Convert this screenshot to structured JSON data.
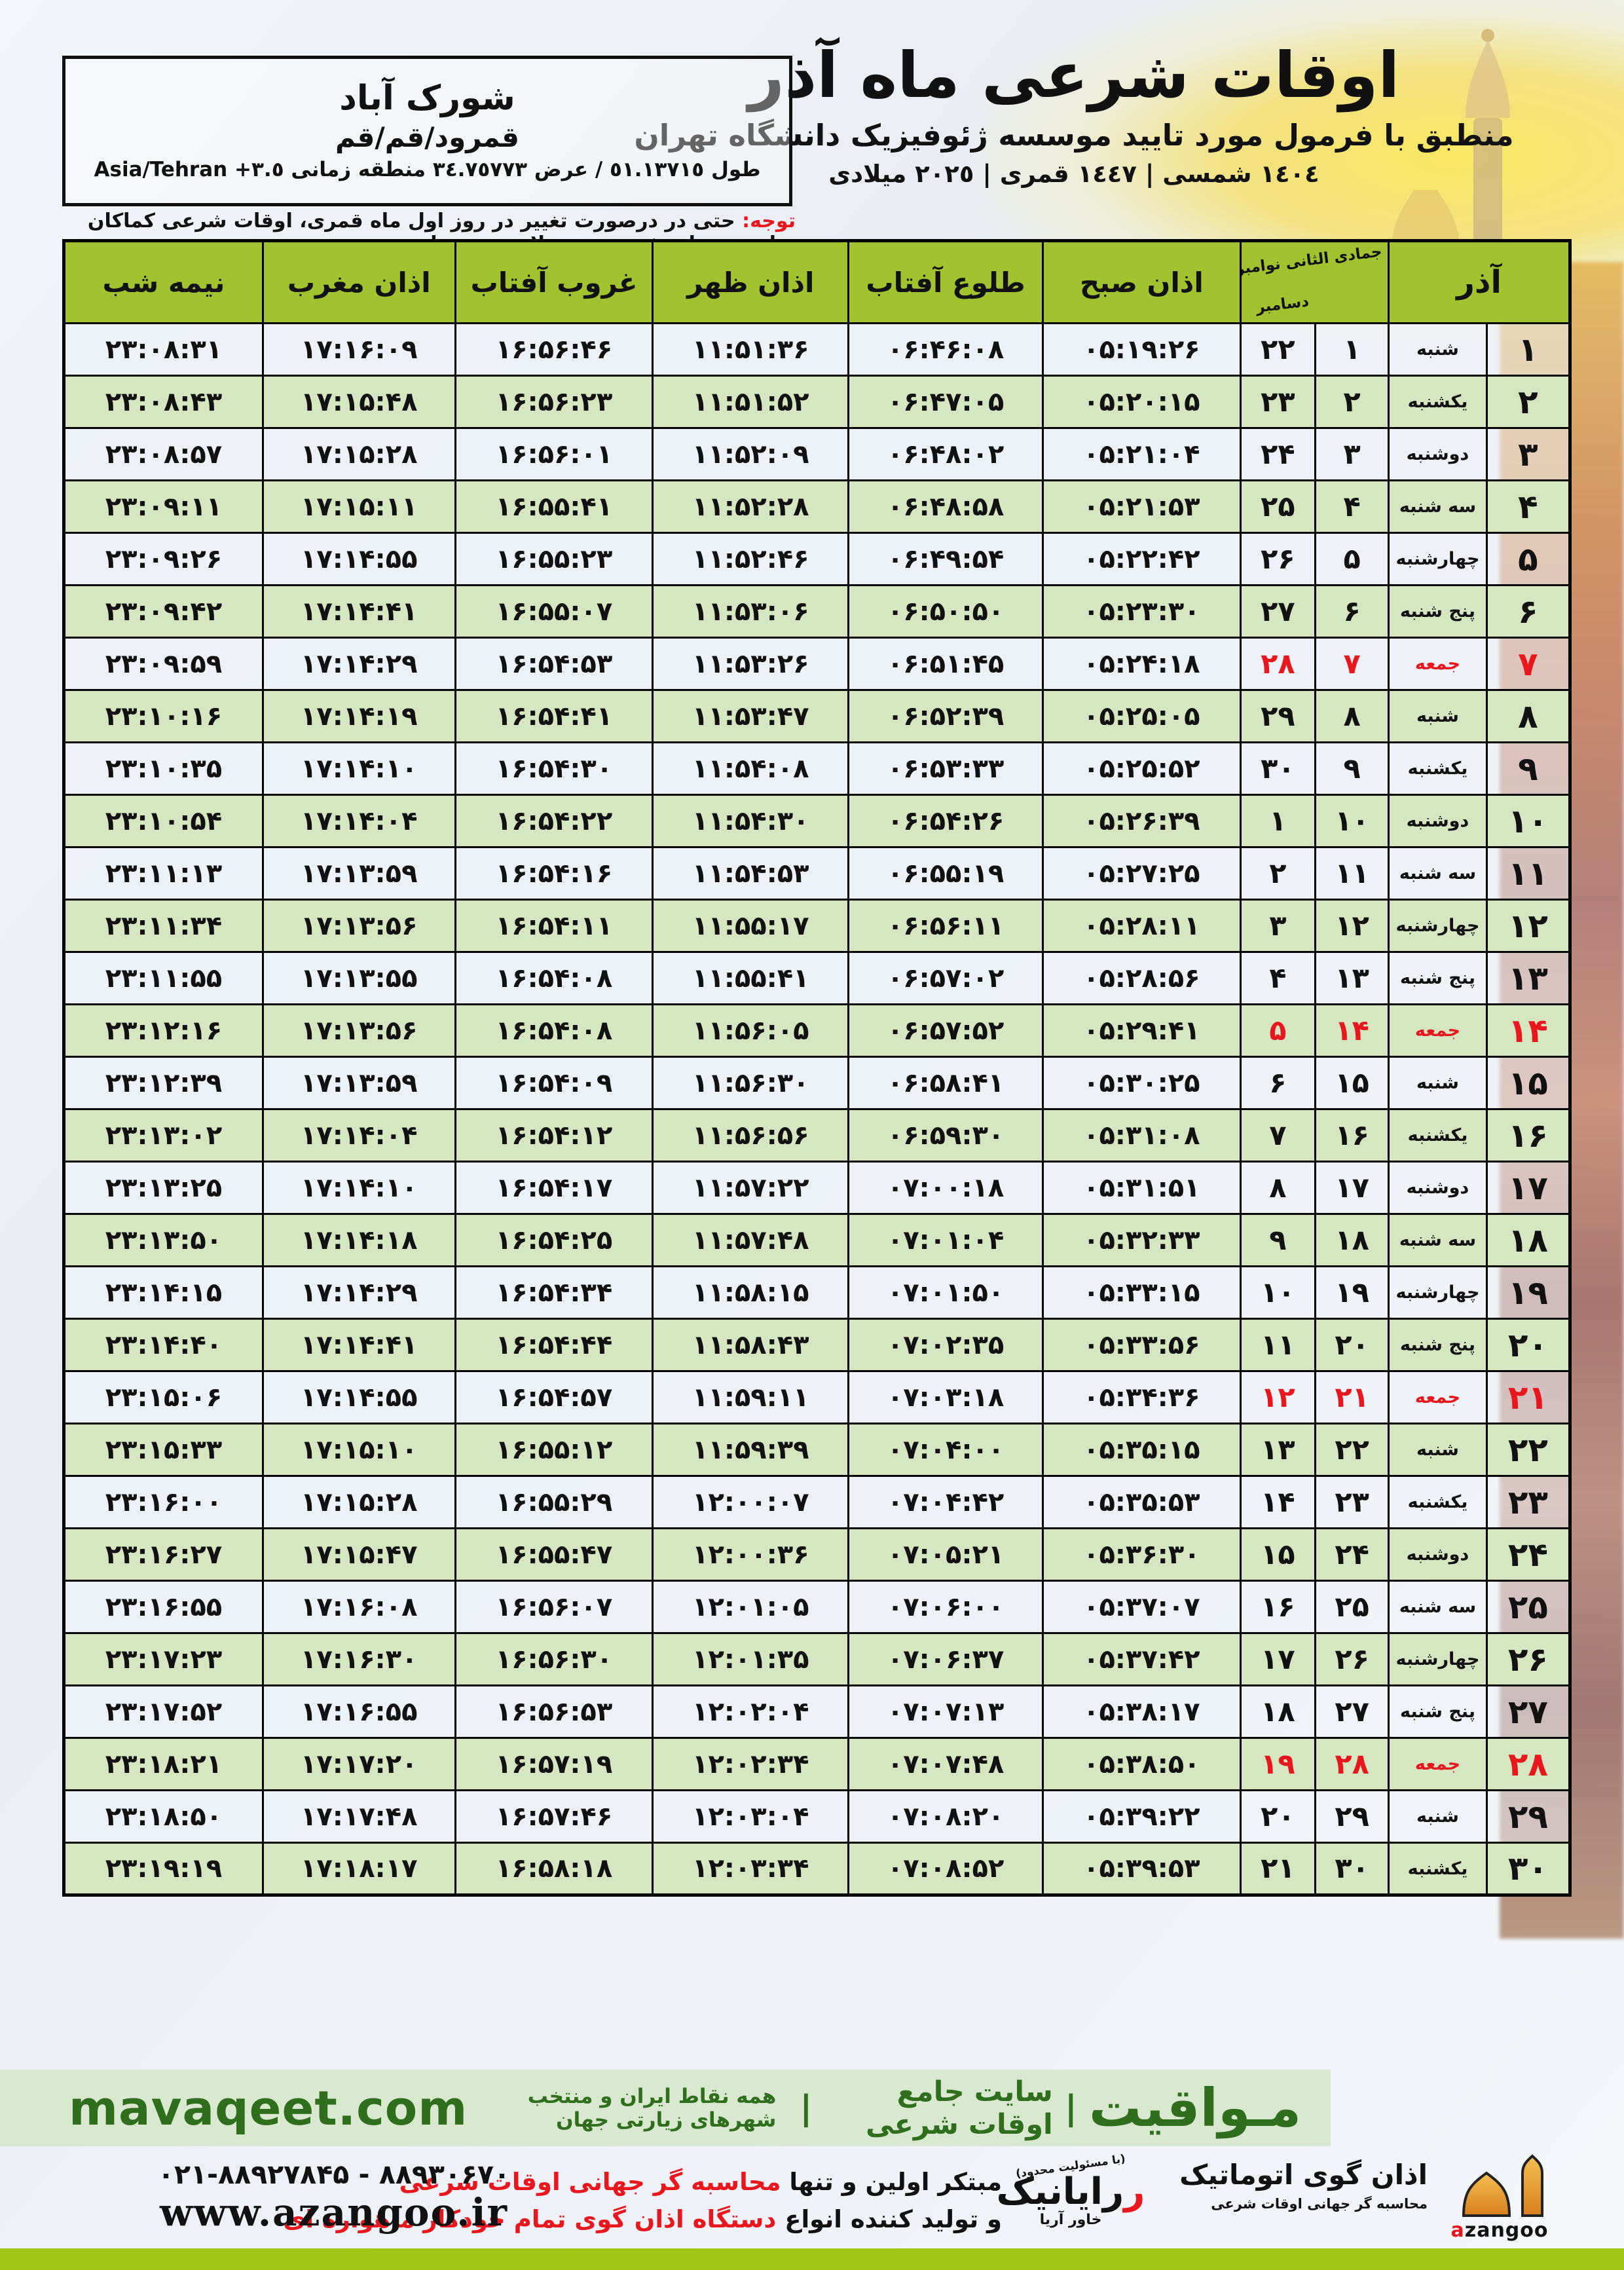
{
  "header": {
    "title": "اوقات شرعی ماه آذر",
    "subtitle": "منطبق با فرمول مورد تایید موسسه ژئوفیزیک دانشگاه تهران",
    "calendars": "١٤٠٤ شمسی | ١٤٤٧ قمری | ٢٠٢٥ میلادی",
    "location": {
      "name": "شورک آباد",
      "region": "قمرود/قم/قم",
      "coords": "طول ٥١.١٣٧١٥ / عرض ٣٤.٧٥٧٧٣ منطقه زمانی ٣.٥+ Asia/Tehran"
    },
    "notice_label": "توجه:",
    "notice_text": " حتی در درصورت تغییر در روز اول ماه قمری، اوقات شرعی کماکان برای روزهای شمسی و میلادی معتبر است."
  },
  "table": {
    "headers": {
      "azar": "آذر",
      "sub_top": "جمادی الثانی نوامبر",
      "sub_bottom": "دسامبر",
      "sobh": "اذان صبح",
      "tolu": "طلوع آفتاب",
      "zohr": "اذان ظهر",
      "ghorub": "غروب آفتاب",
      "maghreb": "اذان مغرب",
      "midnight": "نیمه شب"
    },
    "rows": [
      {
        "day": "۱",
        "weekday": "شنبه",
        "lunar": "۱",
        "greg": "۲۲",
        "sobh": "۰۵:۱۹:۲۶",
        "tolu": "۰۶:۴۶:۰۸",
        "zohr": "۱۱:۵۱:۳۶",
        "ghorub": "۱۶:۵۶:۴۶",
        "maghreb": "۱۷:۱۶:۰۹",
        "midnight": "۲۳:۰۸:۳۱",
        "friday": false
      },
      {
        "day": "۲",
        "weekday": "یکشنبه",
        "lunar": "۲",
        "greg": "۲۳",
        "sobh": "۰۵:۲۰:۱۵",
        "tolu": "۰۶:۴۷:۰۵",
        "zohr": "۱۱:۵۱:۵۲",
        "ghorub": "۱۶:۵۶:۲۳",
        "maghreb": "۱۷:۱۵:۴۸",
        "midnight": "۲۳:۰۸:۴۳",
        "friday": false
      },
      {
        "day": "۳",
        "weekday": "دوشنبه",
        "lunar": "۳",
        "greg": "۲۴",
        "sobh": "۰۵:۲۱:۰۴",
        "tolu": "۰۶:۴۸:۰۲",
        "zohr": "۱۱:۵۲:۰۹",
        "ghorub": "۱۶:۵۶:۰۱",
        "maghreb": "۱۷:۱۵:۲۸",
        "midnight": "۲۳:۰۸:۵۷",
        "friday": false
      },
      {
        "day": "۴",
        "weekday": "سه شنبه",
        "lunar": "۴",
        "greg": "۲۵",
        "sobh": "۰۵:۲۱:۵۳",
        "tolu": "۰۶:۴۸:۵۸",
        "zohr": "۱۱:۵۲:۲۸",
        "ghorub": "۱۶:۵۵:۴۱",
        "maghreb": "۱۷:۱۵:۱۱",
        "midnight": "۲۳:۰۹:۱۱",
        "friday": false
      },
      {
        "day": "۵",
        "weekday": "چهارشنبه",
        "lunar": "۵",
        "greg": "۲۶",
        "sobh": "۰۵:۲۲:۴۲",
        "tolu": "۰۶:۴۹:۵۴",
        "zohr": "۱۱:۵۲:۴۶",
        "ghorub": "۱۶:۵۵:۲۳",
        "maghreb": "۱۷:۱۴:۵۵",
        "midnight": "۲۳:۰۹:۲۶",
        "friday": false
      },
      {
        "day": "۶",
        "weekday": "پنج شنبه",
        "lunar": "۶",
        "greg": "۲۷",
        "sobh": "۰۵:۲۳:۳۰",
        "tolu": "۰۶:۵۰:۵۰",
        "zohr": "۱۱:۵۳:۰۶",
        "ghorub": "۱۶:۵۵:۰۷",
        "maghreb": "۱۷:۱۴:۴۱",
        "midnight": "۲۳:۰۹:۴۲",
        "friday": false
      },
      {
        "day": "۷",
        "weekday": "جمعه",
        "lunar": "۷",
        "greg": "۲۸",
        "sobh": "۰۵:۲۴:۱۸",
        "tolu": "۰۶:۵۱:۴۵",
        "zohr": "۱۱:۵۳:۲۶",
        "ghorub": "۱۶:۵۴:۵۳",
        "maghreb": "۱۷:۱۴:۲۹",
        "midnight": "۲۳:۰۹:۵۹",
        "friday": true
      },
      {
        "day": "۸",
        "weekday": "شنبه",
        "lunar": "۸",
        "greg": "۲۹",
        "sobh": "۰۵:۲۵:۰۵",
        "tolu": "۰۶:۵۲:۳۹",
        "zohr": "۱۱:۵۳:۴۷",
        "ghorub": "۱۶:۵۴:۴۱",
        "maghreb": "۱۷:۱۴:۱۹",
        "midnight": "۲۳:۱۰:۱۶",
        "friday": false
      },
      {
        "day": "۹",
        "weekday": "یکشنبه",
        "lunar": "۹",
        "greg": "۳۰",
        "sobh": "۰۵:۲۵:۵۲",
        "tolu": "۰۶:۵۳:۳۳",
        "zohr": "۱۱:۵۴:۰۸",
        "ghorub": "۱۶:۵۴:۳۰",
        "maghreb": "۱۷:۱۴:۱۰",
        "midnight": "۲۳:۱۰:۳۵",
        "friday": false
      },
      {
        "day": "۱۰",
        "weekday": "دوشنبه",
        "lunar": "۱۰",
        "greg": "۱",
        "sobh": "۰۵:۲۶:۳۹",
        "tolu": "۰۶:۵۴:۲۶",
        "zohr": "۱۱:۵۴:۳۰",
        "ghorub": "۱۶:۵۴:۲۲",
        "maghreb": "۱۷:۱۴:۰۴",
        "midnight": "۲۳:۱۰:۵۴",
        "friday": false
      },
      {
        "day": "۱۱",
        "weekday": "سه شنبه",
        "lunar": "۱۱",
        "greg": "۲",
        "sobh": "۰۵:۲۷:۲۵",
        "tolu": "۰۶:۵۵:۱۹",
        "zohr": "۱۱:۵۴:۵۳",
        "ghorub": "۱۶:۵۴:۱۶",
        "maghreb": "۱۷:۱۳:۵۹",
        "midnight": "۲۳:۱۱:۱۳",
        "friday": false
      },
      {
        "day": "۱۲",
        "weekday": "چهارشنبه",
        "lunar": "۱۲",
        "greg": "۳",
        "sobh": "۰۵:۲۸:۱۱",
        "tolu": "۰۶:۵۶:۱۱",
        "zohr": "۱۱:۵۵:۱۷",
        "ghorub": "۱۶:۵۴:۱۱",
        "maghreb": "۱۷:۱۳:۵۶",
        "midnight": "۲۳:۱۱:۳۴",
        "friday": false
      },
      {
        "day": "۱۳",
        "weekday": "پنج شنبه",
        "lunar": "۱۳",
        "greg": "۴",
        "sobh": "۰۵:۲۸:۵۶",
        "tolu": "۰۶:۵۷:۰۲",
        "zohr": "۱۱:۵۵:۴۱",
        "ghorub": "۱۶:۵۴:۰۸",
        "maghreb": "۱۷:۱۳:۵۵",
        "midnight": "۲۳:۱۱:۵۵",
        "friday": false
      },
      {
        "day": "۱۴",
        "weekday": "جمعه",
        "lunar": "۱۴",
        "greg": "۵",
        "sobh": "۰۵:۲۹:۴۱",
        "tolu": "۰۶:۵۷:۵۲",
        "zohr": "۱۱:۵۶:۰۵",
        "ghorub": "۱۶:۵۴:۰۸",
        "maghreb": "۱۷:۱۳:۵۶",
        "midnight": "۲۳:۱۲:۱۶",
        "friday": true
      },
      {
        "day": "۱۵",
        "weekday": "شنبه",
        "lunar": "۱۵",
        "greg": "۶",
        "sobh": "۰۵:۳۰:۲۵",
        "tolu": "۰۶:۵۸:۴۱",
        "zohr": "۱۱:۵۶:۳۰",
        "ghorub": "۱۶:۵۴:۰۹",
        "maghreb": "۱۷:۱۳:۵۹",
        "midnight": "۲۳:۱۲:۳۹",
        "friday": false
      },
      {
        "day": "۱۶",
        "weekday": "یکشنبه",
        "lunar": "۱۶",
        "greg": "۷",
        "sobh": "۰۵:۳۱:۰۸",
        "tolu": "۰۶:۵۹:۳۰",
        "zohr": "۱۱:۵۶:۵۶",
        "ghorub": "۱۶:۵۴:۱۲",
        "maghreb": "۱۷:۱۴:۰۴",
        "midnight": "۲۳:۱۳:۰۲",
        "friday": false
      },
      {
        "day": "۱۷",
        "weekday": "دوشنبه",
        "lunar": "۱۷",
        "greg": "۸",
        "sobh": "۰۵:۳۱:۵۱",
        "tolu": "۰۷:۰۰:۱۸",
        "zohr": "۱۱:۵۷:۲۲",
        "ghorub": "۱۶:۵۴:۱۷",
        "maghreb": "۱۷:۱۴:۱۰",
        "midnight": "۲۳:۱۳:۲۵",
        "friday": false
      },
      {
        "day": "۱۸",
        "weekday": "سه شنبه",
        "lunar": "۱۸",
        "greg": "۹",
        "sobh": "۰۵:۳۲:۳۳",
        "tolu": "۰۷:۰۱:۰۴",
        "zohr": "۱۱:۵۷:۴۸",
        "ghorub": "۱۶:۵۴:۲۵",
        "maghreb": "۱۷:۱۴:۱۸",
        "midnight": "۲۳:۱۳:۵۰",
        "friday": false
      },
      {
        "day": "۱۹",
        "weekday": "چهارشنبه",
        "lunar": "۱۹",
        "greg": "۱۰",
        "sobh": "۰۵:۳۳:۱۵",
        "tolu": "۰۷:۰۱:۵۰",
        "zohr": "۱۱:۵۸:۱۵",
        "ghorub": "۱۶:۵۴:۳۴",
        "maghreb": "۱۷:۱۴:۲۹",
        "midnight": "۲۳:۱۴:۱۵",
        "friday": false
      },
      {
        "day": "۲۰",
        "weekday": "پنج شنبه",
        "lunar": "۲۰",
        "greg": "۱۱",
        "sobh": "۰۵:۳۳:۵۶",
        "tolu": "۰۷:۰۲:۳۵",
        "zohr": "۱۱:۵۸:۴۳",
        "ghorub": "۱۶:۵۴:۴۴",
        "maghreb": "۱۷:۱۴:۴۱",
        "midnight": "۲۳:۱۴:۴۰",
        "friday": false
      },
      {
        "day": "۲۱",
        "weekday": "جمعه",
        "lunar": "۲۱",
        "greg": "۱۲",
        "sobh": "۰۵:۳۴:۳۶",
        "tolu": "۰۷:۰۳:۱۸",
        "zohr": "۱۱:۵۹:۱۱",
        "ghorub": "۱۶:۵۴:۵۷",
        "maghreb": "۱۷:۱۴:۵۵",
        "midnight": "۲۳:۱۵:۰۶",
        "friday": true
      },
      {
        "day": "۲۲",
        "weekday": "شنبه",
        "lunar": "۲۲",
        "greg": "۱۳",
        "sobh": "۰۵:۳۵:۱۵",
        "tolu": "۰۷:۰۴:۰۰",
        "zohr": "۱۱:۵۹:۳۹",
        "ghorub": "۱۶:۵۵:۱۲",
        "maghreb": "۱۷:۱۵:۱۰",
        "midnight": "۲۳:۱۵:۳۳",
        "friday": false
      },
      {
        "day": "۲۳",
        "weekday": "یکشنبه",
        "lunar": "۲۳",
        "greg": "۱۴",
        "sobh": "۰۵:۳۵:۵۳",
        "tolu": "۰۷:۰۴:۴۲",
        "zohr": "۱۲:۰۰:۰۷",
        "ghorub": "۱۶:۵۵:۲۹",
        "maghreb": "۱۷:۱۵:۲۸",
        "midnight": "۲۳:۱۶:۰۰",
        "friday": false
      },
      {
        "day": "۲۴",
        "weekday": "دوشنبه",
        "lunar": "۲۴",
        "greg": "۱۵",
        "sobh": "۰۵:۳۶:۳۰",
        "tolu": "۰۷:۰۵:۲۱",
        "zohr": "۱۲:۰۰:۳۶",
        "ghorub": "۱۶:۵۵:۴۷",
        "maghreb": "۱۷:۱۵:۴۷",
        "midnight": "۲۳:۱۶:۲۷",
        "friday": false
      },
      {
        "day": "۲۵",
        "weekday": "سه شنبه",
        "lunar": "۲۵",
        "greg": "۱۶",
        "sobh": "۰۵:۳۷:۰۷",
        "tolu": "۰۷:۰۶:۰۰",
        "zohr": "۱۲:۰۱:۰۵",
        "ghorub": "۱۶:۵۶:۰۷",
        "maghreb": "۱۷:۱۶:۰۸",
        "midnight": "۲۳:۱۶:۵۵",
        "friday": false
      },
      {
        "day": "۲۶",
        "weekday": "چهارشنبه",
        "lunar": "۲۶",
        "greg": "۱۷",
        "sobh": "۰۵:۳۷:۴۲",
        "tolu": "۰۷:۰۶:۳۷",
        "zohr": "۱۲:۰۱:۳۵",
        "ghorub": "۱۶:۵۶:۳۰",
        "maghreb": "۱۷:۱۶:۳۰",
        "midnight": "۲۳:۱۷:۲۳",
        "friday": false
      },
      {
        "day": "۲۷",
        "weekday": "پنج شنبه",
        "lunar": "۲۷",
        "greg": "۱۸",
        "sobh": "۰۵:۳۸:۱۷",
        "tolu": "۰۷:۰۷:۱۳",
        "zohr": "۱۲:۰۲:۰۴",
        "ghorub": "۱۶:۵۶:۵۳",
        "maghreb": "۱۷:۱۶:۵۵",
        "midnight": "۲۳:۱۷:۵۲",
        "friday": false
      },
      {
        "day": "۲۸",
        "weekday": "جمعه",
        "lunar": "۲۸",
        "greg": "۱۹",
        "sobh": "۰۵:۳۸:۵۰",
        "tolu": "۰۷:۰۷:۴۸",
        "zohr": "۱۲:۰۲:۳۴",
        "ghorub": "۱۶:۵۷:۱۹",
        "maghreb": "۱۷:۱۷:۲۰",
        "midnight": "۲۳:۱۸:۲۱",
        "friday": true
      },
      {
        "day": "۲۹",
        "weekday": "شنبه",
        "lunar": "۲۹",
        "greg": "۲۰",
        "sobh": "۰۵:۳۹:۲۲",
        "tolu": "۰۷:۰۸:۲۰",
        "zohr": "۱۲:۰۳:۰۴",
        "ghorub": "۱۶:۵۷:۴۶",
        "maghreb": "۱۷:۱۷:۴۸",
        "midnight": "۲۳:۱۸:۵۰",
        "friday": false
      },
      {
        "day": "۳۰",
        "weekday": "یکشنبه",
        "lunar": "۳۰",
        "greg": "۲۱",
        "sobh": "۰۵:۳۹:۵۳",
        "tolu": "۰۷:۰۸:۵۲",
        "zohr": "۱۲:۰۳:۳۴",
        "ghorub": "۱۶:۵۸:۱۸",
        "maghreb": "۱۷:۱۸:۱۷",
        "midnight": "۲۳:۱۹:۱۹",
        "friday": false
      }
    ]
  },
  "mavaqeet": {
    "brand": "مـواقیت",
    "sep": "|",
    "tag1": "سایت جامع اوقات شرعی",
    "tag2": "همه نقاط ایران و منتخب شهرهای زیارتی جهان",
    "url": "mavaqeet.com"
  },
  "footer": {
    "line1_black": "مبتکر اولین و تنها ",
    "line1_red": "محاسبه گر جهانی اوقات شرعی",
    "line2_black": "و تولید کننده انواع ",
    "line2_red": "دستگاه اذان گوی تمام خودکار ماهواره ای",
    "phone": "۰۲۱-۸۸۹۲۷۸۴۵ - ۸۸۹۳۰۶۷۰",
    "site": "www.azangoo.ir",
    "rayanik_note": "(با مسئولیت محدود)",
    "rayanik_name": "رایانیک",
    "rayanik_sub": "خاور آریا",
    "azangoo_fa": "اذان گوی اتوماتیک",
    "azangoo_sub": "محاسبه گر جهانی اوقات شرعی",
    "azangoo_word_a": "a",
    "azangoo_word_rest": "zangoo"
  },
  "colors": {
    "header_green": "#a3c230",
    "row_green": "#d5e6c0",
    "row_light": "#edf2f8",
    "friday_red": "#e8161d",
    "bar_green_light": "#d9e9d0",
    "bar_green_dark": "#2f6e1d",
    "bottom_bar": "#a3c517",
    "dome_orange": "#eda33b"
  }
}
